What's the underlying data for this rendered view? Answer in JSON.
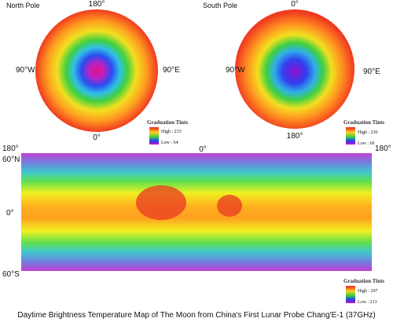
{
  "north_pole": {
    "title": "North Pole",
    "top": "180°",
    "left": "90°W",
    "right": "90°E",
    "bottom": "0°",
    "legend": {
      "title": "Graduation Tints",
      "high": "High : 233",
      "low": "Low : 64"
    }
  },
  "south_pole": {
    "title": "South Pole",
    "top": "0°",
    "left": "90°W",
    "right": "90°E",
    "bottom": "180°",
    "legend": {
      "title": "Graduation Tints",
      "high": "High : 236",
      "low": "Low : 66"
    }
  },
  "global_map": {
    "top_left": "180°",
    "top_center": "0°",
    "top_right": "180°",
    "lat_top": "60°N",
    "lat_mid": "0°",
    "lat_bottom": "60°S",
    "legend": {
      "title": "Graduation Tints",
      "high": "High : 297",
      "low": "Low : 213"
    }
  },
  "caption": "Daytime Brightness Temperature Map of The Moon from China's First Lunar Probe Chang'E-1 (37GHz)"
}
